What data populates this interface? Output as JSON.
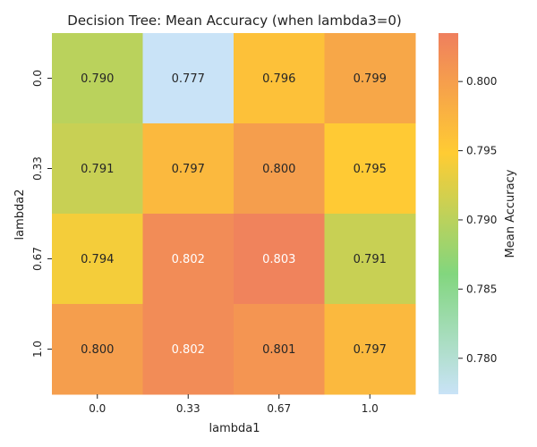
{
  "chart_data": {
    "type": "heatmap",
    "title": "Decision Tree: Mean Accuracy (when lambda3=0)",
    "xlabel": "lambda1",
    "ylabel": "lambda2",
    "x_categories": [
      "0.0",
      "0.33",
      "0.67",
      "1.0"
    ],
    "y_categories": [
      "0.0",
      "0.33",
      "0.67",
      "1.0"
    ],
    "values": [
      [
        0.79,
        0.777,
        0.796,
        0.799
      ],
      [
        0.791,
        0.797,
        0.8,
        0.795
      ],
      [
        0.794,
        0.802,
        0.803,
        0.791
      ],
      [
        0.8,
        0.802,
        0.801,
        0.797
      ]
    ],
    "colorbar": {
      "label": "Mean Accuracy",
      "range": [
        0.7774,
        0.8035
      ],
      "ticks": [
        0.78,
        0.785,
        0.79,
        0.795,
        0.8
      ],
      "colors": [
        "#c9e3f7",
        "#82d67e",
        "#ffcc33",
        "#ef7f5e"
      ]
    }
  }
}
